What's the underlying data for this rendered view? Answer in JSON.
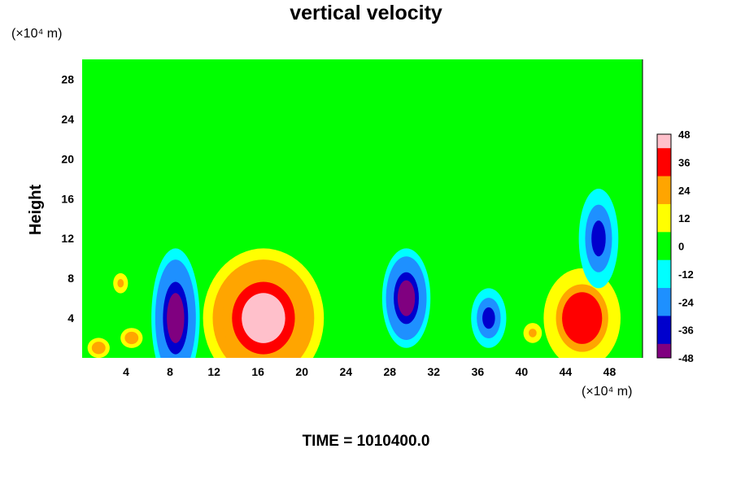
{
  "chart_data": {
    "type": "heatmap",
    "title": "vertical velocity",
    "ylabel": "Height",
    "x_unit": "(×10⁴ m)",
    "y_unit": "(×10⁴ m)",
    "x_ticks": [
      4,
      8,
      12,
      16,
      20,
      24,
      28,
      32,
      36,
      40,
      44,
      48
    ],
    "y_ticks": [
      4,
      8,
      12,
      16,
      20,
      24,
      28
    ],
    "xlim": [
      0,
      51
    ],
    "ylim": [
      0,
      30
    ],
    "colorbar_ticks": [
      48,
      36,
      24,
      12,
      0,
      -12,
      -24,
      -36,
      -48
    ],
    "colorbar_range": [
      -48,
      48
    ],
    "colormap": [
      "#800080",
      "#0000cd",
      "#1e90ff",
      "#00ffff",
      "#00ff00",
      "#ffff00",
      "#ffa500",
      "#ff0000",
      "#ffc0cb"
    ],
    "field_features": [
      {
        "type": "updraft",
        "x": 16.5,
        "y": 4,
        "peak": 48,
        "extent_x": 5.5,
        "extent_y": 7
      },
      {
        "type": "downdraft",
        "x": 8.5,
        "y": 4,
        "peak": -48,
        "extent_x": 2.2,
        "extent_y": 7
      },
      {
        "type": "downdraft",
        "x": 29.5,
        "y": 6,
        "peak": -48,
        "extent_x": 2.2,
        "extent_y": 5
      },
      {
        "type": "updraft",
        "x": 45.5,
        "y": 4,
        "peak": 40,
        "extent_x": 3.5,
        "extent_y": 5
      },
      {
        "type": "downdraft",
        "x": 37,
        "y": 4,
        "peak": -34,
        "extent_x": 1.6,
        "extent_y": 3
      },
      {
        "type": "downdraft",
        "x": 47,
        "y": 12,
        "peak": -36,
        "extent_x": 1.8,
        "extent_y": 5
      },
      {
        "type": "updraft",
        "x": 1.5,
        "y": 1,
        "peak": 24,
        "extent_x": 1.2,
        "extent_y": 1.2
      },
      {
        "type": "updraft",
        "x": 4.5,
        "y": 2,
        "peak": 24,
        "extent_x": 1.2,
        "extent_y": 1.2
      },
      {
        "type": "updraft",
        "x": 41,
        "y": 2.5,
        "peak": 20,
        "extent_x": 1.0,
        "extent_y": 1.2
      },
      {
        "type": "updraft",
        "x": 3.5,
        "y": 7.5,
        "peak": 18,
        "extent_x": 0.8,
        "extent_y": 1.2
      }
    ]
  },
  "time_label": "TIME = 1010400.0"
}
